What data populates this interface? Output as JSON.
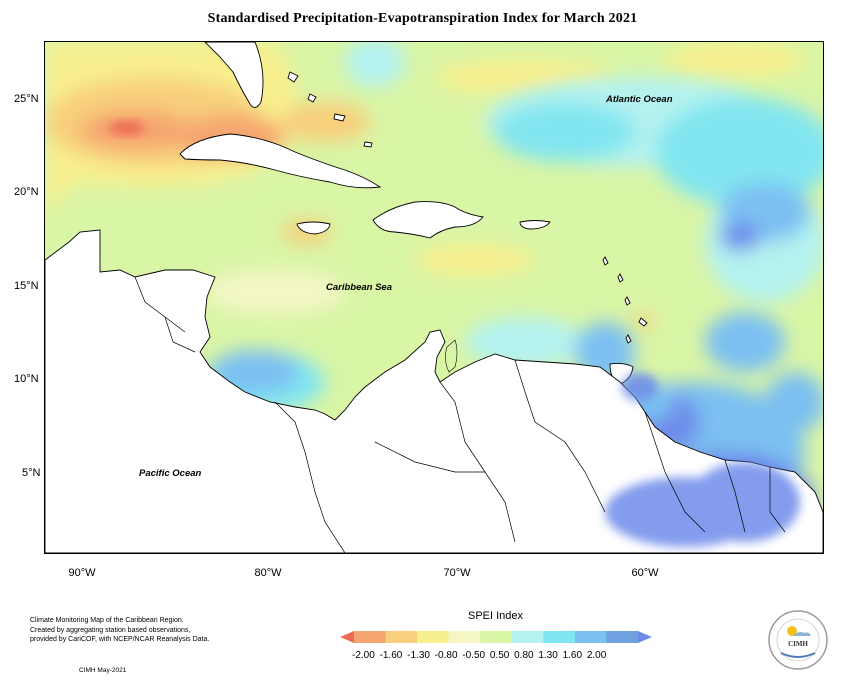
{
  "title": "Standardised Precipitation-Evapotranspiration Index for March 2021",
  "map": {
    "latitude_labels": [
      "25°N",
      "20°N",
      "15°N",
      "10°N",
      "5°N"
    ],
    "longitude_labels": [
      "90°W",
      "80°W",
      "70°W",
      "60°W"
    ],
    "place_labels": {
      "atlantic": "Atlantic Ocean",
      "caribbean": "Caribbean Sea",
      "pacific": "Pacific Ocean"
    },
    "colors": {
      "land": "#ffffff",
      "near_normal": "#d9f5a6",
      "border": "#000000"
    }
  },
  "legend": {
    "title": "SPEI Index",
    "labels": "-2.00 -1.60 -1.30 -0.80 -0.50  0.50  0.80  1.30  1.60  2.00",
    "class_colors": [
      "#ef6a55",
      "#f5a570",
      "#f8cf7c",
      "#f8ef8e",
      "#f4f6c6",
      "#d9f5a6",
      "#b4f2f0",
      "#82e6f0",
      "#7cc0f2",
      "#6fa0df",
      "#6e8bea"
    ]
  },
  "credits": {
    "line1": "Climate Monitoring Map of the Caribbean Region.",
    "line2": "Created by aggregating station based observations,",
    "line3": "provided by CariCOF, with NCEP/NCAR Reanalysis Data.",
    "date": "CIMH May-2021"
  },
  "logo": {
    "text": "CIMH"
  }
}
